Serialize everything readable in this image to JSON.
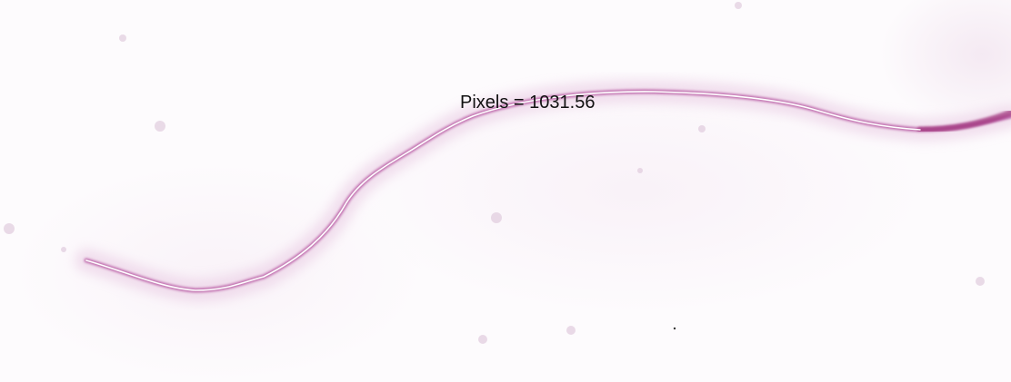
{
  "measurement": {
    "label": "Pixels = 1031.56"
  },
  "colors": {
    "fiber": "#b04a9a",
    "trace": "#ffffff",
    "halo": "#e8c9e2",
    "text": "#111111"
  }
}
